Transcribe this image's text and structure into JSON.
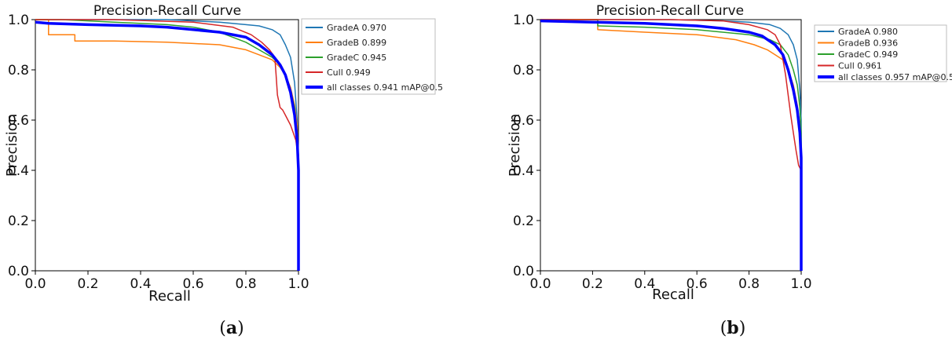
{
  "panel_labels": [
    {
      "open": "(",
      "letter": "a",
      "close": ")"
    },
    {
      "open": "(",
      "letter": "b",
      "close": ")"
    }
  ],
  "chart_data": [
    {
      "type": "line",
      "title": "Precision-Recall Curve",
      "xlabel": "Recall",
      "ylabel": "Precision",
      "xlim": [
        0,
        1
      ],
      "ylim": [
        0,
        1
      ],
      "xticks": [
        "0.0",
        "0.2",
        "0.4",
        "0.6",
        "0.8",
        "1.0"
      ],
      "yticks": [
        "0.0",
        "0.2",
        "0.4",
        "0.6",
        "0.8",
        "1.0"
      ],
      "grid": false,
      "legend_position": "top-right",
      "series": [
        {
          "name": "GradeA 0.970",
          "color": "#1f77b4",
          "width": 1.5,
          "x": [
            0,
            0.05,
            0.2,
            0.4,
            0.5,
            0.6,
            0.7,
            0.8,
            0.85,
            0.9,
            0.93,
            0.95,
            0.97,
            0.985,
            0.995,
            1.0,
            1.0
          ],
          "y": [
            1.0,
            1.0,
            1.0,
            1.0,
            1.0,
            0.995,
            0.99,
            0.98,
            0.975,
            0.96,
            0.94,
            0.9,
            0.85,
            0.75,
            0.6,
            0.45,
            0.0
          ]
        },
        {
          "name": "GradeB 0.899",
          "color": "#ff7f0e",
          "width": 1.5,
          "x": [
            0,
            0.05,
            0.05,
            0.15,
            0.15,
            0.3,
            0.5,
            0.6,
            0.7,
            0.8,
            0.85,
            0.9,
            0.93,
            0.95,
            0.97,
            0.985,
            0.995,
            1.0,
            1.0
          ],
          "y": [
            1.0,
            1.0,
            0.94,
            0.94,
            0.915,
            0.915,
            0.91,
            0.905,
            0.9,
            0.88,
            0.86,
            0.84,
            0.81,
            0.78,
            0.73,
            0.66,
            0.58,
            0.45,
            0.0
          ]
        },
        {
          "name": "GradeC 0.945",
          "color": "#2ca02c",
          "width": 1.5,
          "x": [
            0,
            0.1,
            0.3,
            0.5,
            0.6,
            0.7,
            0.75,
            0.8,
            0.85,
            0.9,
            0.93,
            0.95,
            0.97,
            0.985,
            0.995,
            1.0,
            1.0
          ],
          "y": [
            1.0,
            1.0,
            0.99,
            0.98,
            0.97,
            0.95,
            0.93,
            0.91,
            0.88,
            0.85,
            0.82,
            0.78,
            0.72,
            0.65,
            0.55,
            0.45,
            0.0
          ]
        },
        {
          "name": "Cull 0.949",
          "color": "#d62728",
          "width": 1.5,
          "x": [
            0,
            0.3,
            0.6,
            0.75,
            0.82,
            0.86,
            0.89,
            0.91,
            0.915,
            0.92,
            0.93,
            0.94,
            0.95,
            0.96,
            0.97,
            0.98,
            0.99,
            1.0,
            1.0
          ],
          "y": [
            1.0,
            1.0,
            0.99,
            0.97,
            0.94,
            0.91,
            0.88,
            0.85,
            0.78,
            0.7,
            0.65,
            0.64,
            0.62,
            0.6,
            0.58,
            0.55,
            0.52,
            0.45,
            0.0
          ]
        },
        {
          "name": "all classes 0.941 mAP@0.5",
          "color": "#0000ff",
          "width": 3.5,
          "x": [
            0,
            0.05,
            0.2,
            0.4,
            0.5,
            0.6,
            0.7,
            0.8,
            0.85,
            0.9,
            0.93,
            0.95,
            0.97,
            0.985,
            0.995,
            1.0,
            1.0
          ],
          "y": [
            0.99,
            0.985,
            0.98,
            0.975,
            0.97,
            0.96,
            0.95,
            0.93,
            0.9,
            0.86,
            0.82,
            0.78,
            0.71,
            0.62,
            0.52,
            0.4,
            0.0
          ]
        }
      ]
    },
    {
      "type": "line",
      "title": "Precision-Recall Curve",
      "xlabel": "Recall",
      "ylabel": "Precision",
      "xlim": [
        0,
        1
      ],
      "ylim": [
        0,
        1
      ],
      "xticks": [
        "0.0",
        "0.2",
        "0.4",
        "0.6",
        "0.8",
        "1.0"
      ],
      "yticks": [
        "0.0",
        "0.2",
        "0.4",
        "0.6",
        "0.8",
        "1.0"
      ],
      "grid": false,
      "legend_position": "outside-right",
      "series": [
        {
          "name": "GradeA 0.980",
          "color": "#1f77b4",
          "width": 1.5,
          "x": [
            0,
            0.3,
            0.5,
            0.7,
            0.8,
            0.88,
            0.92,
            0.95,
            0.97,
            0.985,
            0.995,
            1.0,
            1.0
          ],
          "y": [
            1.0,
            1.0,
            1.0,
            0.995,
            0.99,
            0.98,
            0.965,
            0.94,
            0.9,
            0.84,
            0.72,
            0.6,
            0.0
          ]
        },
        {
          "name": "GradeB 0.936",
          "color": "#ff7f0e",
          "width": 1.5,
          "x": [
            0,
            0.22,
            0.22,
            0.4,
            0.6,
            0.75,
            0.82,
            0.87,
            0.9,
            0.93,
            0.95,
            0.97,
            0.985,
            0.995,
            1.0,
            1.0
          ],
          "y": [
            1.0,
            1.0,
            0.96,
            0.95,
            0.94,
            0.92,
            0.9,
            0.88,
            0.86,
            0.84,
            0.8,
            0.74,
            0.66,
            0.58,
            0.5,
            0.0
          ]
        },
        {
          "name": "GradeC 0.949",
          "color": "#2ca02c",
          "width": 1.5,
          "x": [
            0,
            0.22,
            0.22,
            0.4,
            0.6,
            0.8,
            0.88,
            0.92,
            0.95,
            0.97,
            0.985,
            0.995,
            1.0,
            1.0
          ],
          "y": [
            1.0,
            1.0,
            0.975,
            0.97,
            0.96,
            0.94,
            0.92,
            0.9,
            0.86,
            0.8,
            0.74,
            0.65,
            0.55,
            0.0
          ]
        },
        {
          "name": "Cull 0.961",
          "color": "#d62728",
          "width": 1.5,
          "x": [
            0,
            0.5,
            0.7,
            0.8,
            0.87,
            0.9,
            0.92,
            0.93,
            0.94,
            0.95,
            0.96,
            0.97,
            0.98,
            0.99,
            1.0,
            1.0
          ],
          "y": [
            1.0,
            1.0,
            0.995,
            0.98,
            0.96,
            0.94,
            0.9,
            0.84,
            0.78,
            0.7,
            0.62,
            0.55,
            0.48,
            0.42,
            0.4,
            0.0
          ]
        },
        {
          "name": "all classes 0.957 mAP@0.5",
          "color": "#0000ff",
          "width": 3.5,
          "x": [
            0,
            0.2,
            0.4,
            0.6,
            0.7,
            0.8,
            0.85,
            0.9,
            0.93,
            0.95,
            0.97,
            0.985,
            0.995,
            1.0,
            1.0
          ],
          "y": [
            0.995,
            0.99,
            0.985,
            0.975,
            0.965,
            0.95,
            0.935,
            0.9,
            0.86,
            0.8,
            0.72,
            0.64,
            0.55,
            0.45,
            0.0
          ]
        }
      ]
    }
  ]
}
